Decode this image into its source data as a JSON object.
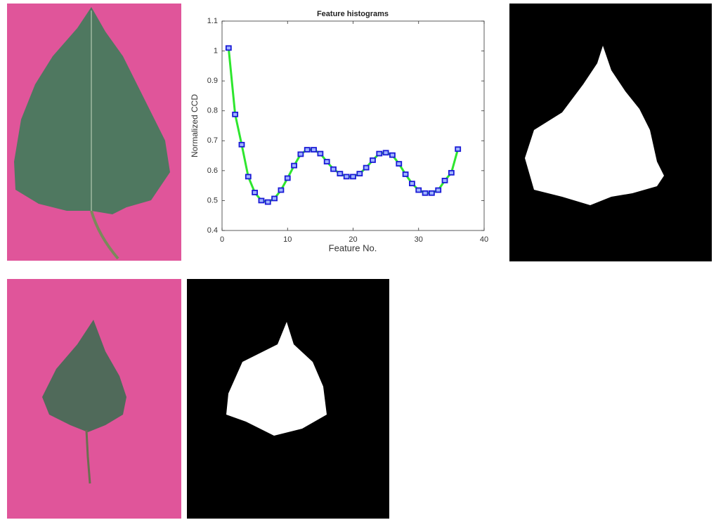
{
  "chart_data": {
    "type": "line",
    "title": "Feature histograms",
    "x_label": "Feature No.",
    "y_label": "Normalized CCD",
    "x": [
      1,
      2,
      3,
      4,
      5,
      6,
      7,
      8,
      9,
      10,
      11,
      12,
      13,
      14,
      15,
      16,
      17,
      18,
      19,
      20,
      21,
      22,
      23,
      24,
      25,
      26,
      27,
      28,
      29,
      30,
      31,
      32,
      33,
      34,
      35,
      36
    ],
    "values": [
      1.01,
      0.788,
      0.687,
      0.58,
      0.527,
      0.5,
      0.495,
      0.507,
      0.535,
      0.575,
      0.617,
      0.655,
      0.67,
      0.67,
      0.657,
      0.63,
      0.605,
      0.59,
      0.58,
      0.58,
      0.59,
      0.61,
      0.635,
      0.657,
      0.66,
      0.652,
      0.623,
      0.588,
      0.557,
      0.535,
      0.525,
      0.525,
      0.535,
      0.567,
      0.593,
      0.672
    ],
    "color": "#2ee62e",
    "marker_color": "#1a1ad6",
    "xlim": [
      0,
      40
    ],
    "xticks": [
      0,
      10,
      20,
      30,
      40
    ],
    "ylim": [
      0.4,
      1.1
    ],
    "yticks": [
      0.4,
      0.5,
      0.6,
      0.7,
      0.8,
      0.9,
      1,
      1.1
    ]
  }
}
